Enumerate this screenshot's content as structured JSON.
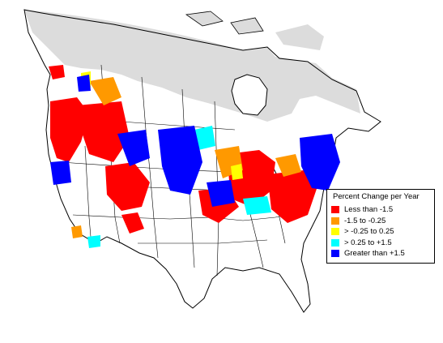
{
  "legend": {
    "title": "Percent Change per Year",
    "items": [
      {
        "label": "Less than -1.5",
        "color": "#ff0000"
      },
      {
        "label": "-1.5 to -0.25",
        "color": "#ff9900"
      },
      {
        "label": "> -0.25 to 0.25",
        "color": "#ffff00"
      },
      {
        "label": "> 0.25 to +1.5",
        "color": "#00ffff"
      },
      {
        "label": "Greater than +1.5",
        "color": "#0000ff"
      }
    ]
  },
  "colors": {
    "no_data_region": "#dcdcdc",
    "land": "#ffffff",
    "outline": "#000000"
  }
}
